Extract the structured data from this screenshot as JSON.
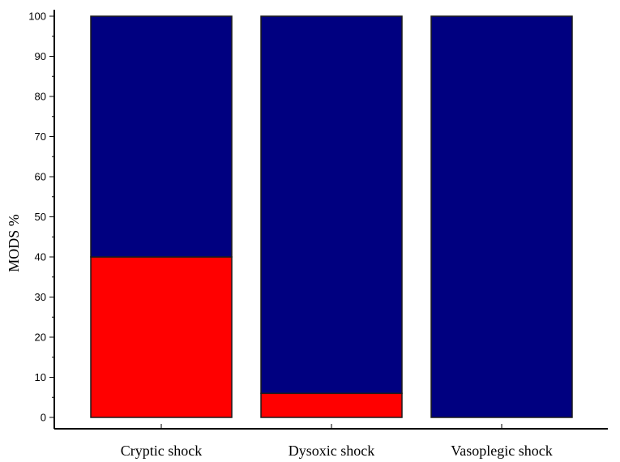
{
  "chart_data": {
    "type": "bar",
    "stacked": true,
    "percent": true,
    "title": "",
    "xlabel": "",
    "ylabel": "MODS %",
    "ylim": [
      0,
      100
    ],
    "yticks": [
      0,
      10,
      20,
      30,
      40,
      50,
      60,
      70,
      80,
      90,
      100
    ],
    "ytick_labels": [
      "0",
      "10",
      "20",
      "30",
      "40",
      "50",
      "60",
      "70",
      "80",
      "90",
      "100"
    ],
    "categories": [
      "Cryptic shock",
      "Dysoxic shock",
      "Vasoplegic shock"
    ],
    "series": [
      {
        "color": "#ff0000",
        "values": [
          40,
          6,
          0
        ]
      },
      {
        "color": "#000080",
        "values": [
          60,
          94,
          100
        ]
      }
    ],
    "legend": "none",
    "grid": false
  }
}
